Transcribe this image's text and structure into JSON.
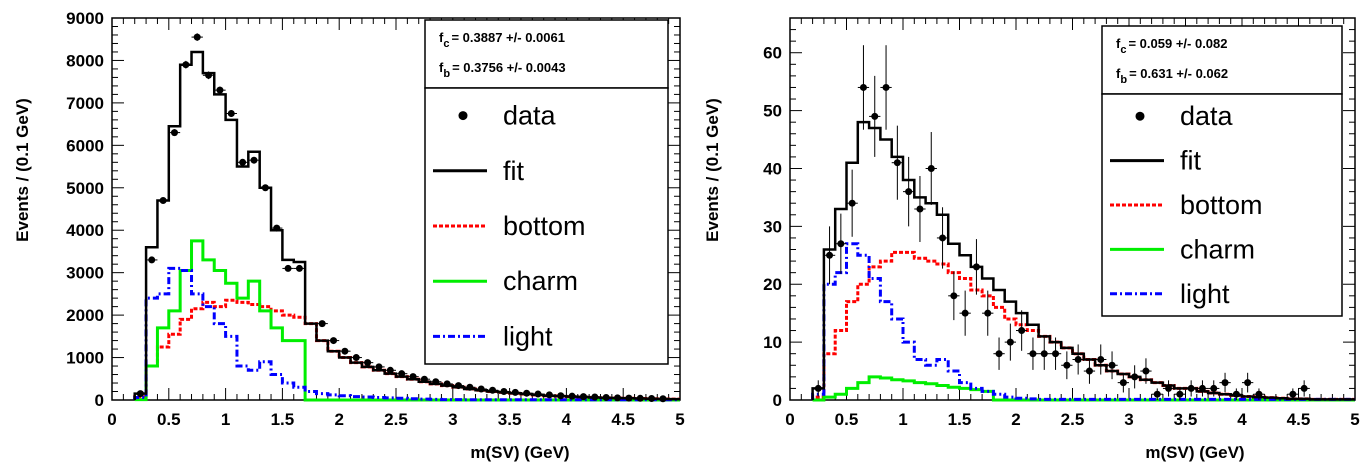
{
  "chart_data": [
    {
      "type": "histogram",
      "xlabel": "m(SV) (GeV)",
      "ylabel": "Events / (0.1 GeV)",
      "xlim": [
        0,
        5
      ],
      "ylim": [
        0,
        9000
      ],
      "xticks": [
        "0",
        "0.5",
        "1",
        "1.5",
        "2",
        "2.5",
        "3",
        "3.5",
        "4",
        "4.5",
        "5"
      ],
      "yticks": [
        "0",
        "1000",
        "2000",
        "3000",
        "4000",
        "5000",
        "6000",
        "7000",
        "8000",
        "9000"
      ],
      "bin_width": 0.1,
      "x_start": 0.2,
      "stats": [
        {
          "label": "f",
          "sub": "c",
          "value": "= 0.3887 +/- 0.0061"
        },
        {
          "label": "f",
          "sub": "b",
          "value": "= 0.3756 +/- 0.0043"
        }
      ],
      "legend": [
        {
          "label": "data",
          "style": "marker"
        },
        {
          "label": "fit",
          "style": "solid",
          "color": "#000000"
        },
        {
          "label": "bottom",
          "style": "dotted",
          "color": "#ff0000"
        },
        {
          "label": "charm",
          "style": "solid",
          "color": "#00ee00"
        },
        {
          "label": "light",
          "style": "dashdot",
          "color": "#0000ff"
        }
      ],
      "series": [
        {
          "name": "fit",
          "color": "#000000",
          "values": [
            150,
            3600,
            4700,
            6450,
            7900,
            8200,
            7700,
            7200,
            6600,
            5500,
            5850,
            5000,
            4000,
            3300,
            3250,
            1800,
            1400,
            1150,
            1000,
            880,
            780,
            700,
            620,
            550,
            490,
            430,
            380,
            340,
            300,
            260,
            230,
            200,
            180,
            160,
            140,
            120,
            100,
            90,
            80,
            70,
            60,
            50,
            45,
            40,
            35,
            30,
            25,
            20
          ]
        },
        {
          "name": "bottom",
          "color": "#ff0000",
          "values": [
            80,
            800,
            1250,
            1550,
            1900,
            2150,
            2300,
            2200,
            2350,
            2300,
            2250,
            2200,
            2100,
            2000,
            1950,
            1800,
            1400,
            1150,
            1000,
            880,
            780,
            700,
            620,
            550,
            490,
            430,
            380,
            340,
            300,
            260,
            230,
            200,
            180,
            160,
            140,
            120,
            100,
            90,
            80,
            70,
            60,
            50,
            45,
            40,
            35,
            30,
            25,
            20
          ]
        },
        {
          "name": "charm",
          "color": "#00ee00",
          "values": [
            10,
            800,
            1700,
            2100,
            3050,
            3750,
            3300,
            3050,
            2750,
            2400,
            2800,
            2100,
            1700,
            1400,
            1400,
            0,
            0,
            0,
            0,
            0,
            0,
            0,
            0,
            0,
            0,
            0,
            0,
            0,
            0,
            0,
            0,
            0,
            0,
            0,
            0,
            0,
            0,
            0,
            0,
            0,
            0,
            0,
            0,
            0,
            0,
            0,
            0,
            0
          ]
        },
        {
          "name": "light",
          "color": "#0000ff",
          "values": [
            60,
            2400,
            2500,
            3100,
            3050,
            2500,
            2200,
            1800,
            1500,
            800,
            700,
            900,
            600,
            400,
            300,
            200,
            150,
            120,
            100,
            80,
            70,
            60,
            50,
            40,
            30,
            20,
            15,
            10,
            10,
            5,
            5,
            5,
            5,
            5,
            5,
            5,
            5,
            5,
            5,
            5,
            5,
            5,
            5,
            5,
            5,
            5,
            5,
            5
          ]
        }
      ],
      "data_points": {
        "x": [
          0.25,
          0.35,
          0.45,
          0.55,
          0.65,
          0.75,
          0.85,
          0.95,
          1.05,
          1.15,
          1.25,
          1.35,
          1.45,
          1.55,
          1.65,
          1.85,
          1.95,
          2.05,
          2.15,
          2.25,
          2.35,
          2.45,
          2.55,
          2.65,
          2.75,
          2.85,
          2.95,
          3.05,
          3.15,
          3.25,
          3.35,
          3.45,
          3.55,
          3.65,
          3.75,
          3.85,
          3.95,
          4.05,
          4.15,
          4.25,
          4.35,
          4.45,
          4.55,
          4.65,
          4.75,
          4.85
        ],
        "y": [
          150,
          3300,
          4700,
          6300,
          7900,
          8550,
          7650,
          7300,
          6750,
          5600,
          5650,
          5000,
          4050,
          3100,
          3100,
          1800,
          1400,
          1150,
          1000,
          880,
          780,
          700,
          620,
          550,
          490,
          430,
          380,
          340,
          300,
          260,
          230,
          200,
          180,
          160,
          140,
          120,
          100,
          90,
          80,
          70,
          60,
          50,
          45,
          40,
          35,
          30
        ],
        "err": [
          20,
          60,
          70,
          80,
          90,
          90,
          90,
          85,
          80,
          75,
          75,
          70,
          65,
          55,
          55,
          45,
          40,
          35,
          32,
          30,
          28,
          26,
          25,
          24,
          22,
          21,
          20,
          18,
          17,
          16,
          15,
          14,
          13,
          13,
          12,
          11,
          10,
          10,
          9,
          9,
          8,
          7,
          7,
          6,
          6,
          5
        ]
      }
    },
    {
      "type": "histogram",
      "xlabel": "m(SV) (GeV)",
      "ylabel": "Events / (0.1 GeV)",
      "xlim": [
        0,
        5
      ],
      "ylim": [
        0,
        66
      ],
      "xticks": [
        "0",
        "0.5",
        "1",
        "1.5",
        "2",
        "2.5",
        "3",
        "3.5",
        "4",
        "4.5",
        "5"
      ],
      "yticks": [
        "0",
        "10",
        "20",
        "30",
        "40",
        "50",
        "60"
      ],
      "bin_width": 0.1,
      "x_start": 0.2,
      "stats": [
        {
          "label": "f",
          "sub": "c",
          "value": "= 0.059 +/- 0.082"
        },
        {
          "label": "f",
          "sub": "b",
          "value": "= 0.631 +/- 0.062"
        }
      ],
      "legend": [
        {
          "label": "data",
          "style": "marker"
        },
        {
          "label": "fit",
          "style": "solid",
          "color": "#000000"
        },
        {
          "label": "bottom",
          "style": "dotted",
          "color": "#ff0000"
        },
        {
          "label": "charm",
          "style": "solid",
          "color": "#00ee00"
        },
        {
          "label": "light",
          "style": "dashdot",
          "color": "#0000ff"
        }
      ],
      "series": [
        {
          "name": "fit",
          "color": "#000000",
          "values": [
            2,
            26,
            33,
            41,
            48,
            47,
            45,
            42,
            38,
            35,
            34,
            32,
            27,
            25,
            23,
            21,
            19,
            17,
            15,
            13,
            11,
            10,
            9,
            8,
            7,
            6,
            5,
            4.5,
            4,
            3.5,
            3,
            2.5,
            2,
            2,
            1.5,
            1.2,
            1,
            0.8,
            0.6,
            0.5,
            0.4,
            0.3,
            0.2,
            0.2,
            0.1,
            0.1,
            0.1,
            0.1
          ]
        },
        {
          "name": "bottom",
          "color": "#ff0000",
          "values": [
            0.5,
            8,
            12,
            17,
            20,
            23,
            24,
            25.5,
            25.5,
            24.5,
            24,
            23.5,
            22,
            21,
            19,
            18,
            16,
            14,
            13,
            12,
            11,
            10,
            9,
            8,
            7,
            6,
            5,
            4.5,
            4,
            3.5,
            3,
            2.5,
            2,
            2,
            1.5,
            1.2,
            1,
            0.8,
            0.6,
            0.5,
            0.4,
            0.3,
            0.2,
            0.2,
            0.1,
            0.1,
            0.1,
            0.1
          ]
        },
        {
          "name": "charm",
          "color": "#00ee00",
          "values": [
            0,
            0.5,
            1,
            2,
            3,
            4,
            3.8,
            3.5,
            3.3,
            3,
            2.8,
            2.5,
            2.2,
            2,
            1.8,
            1.5,
            0,
            0,
            0,
            0,
            0,
            0,
            0,
            0,
            0,
            0,
            0,
            0,
            0,
            0,
            0,
            0,
            0,
            0,
            0,
            0,
            0,
            0,
            0,
            0,
            0,
            0,
            0,
            0,
            0,
            0,
            0,
            0
          ]
        },
        {
          "name": "light",
          "color": "#0000ff",
          "values": [
            1,
            20,
            22,
            27,
            25,
            21,
            17,
            14,
            10,
            7,
            6,
            7,
            5,
            3,
            2,
            1.5,
            1,
            0.5,
            0.3,
            0.2,
            0.1,
            0.1,
            0.1,
            0.1,
            0.1,
            0.1,
            0.1,
            0.1,
            0.1,
            0.1,
            0.1,
            0.1,
            0.1,
            0.1,
            0.1,
            0.1,
            0.1,
            0.1,
            0.1,
            0.1,
            0.1,
            0.1,
            0.1,
            0.1,
            0.1,
            0.1,
            0.1,
            0.1
          ]
        }
      ],
      "data_points": {
        "x": [
          0.25,
          0.35,
          0.45,
          0.55,
          0.65,
          0.75,
          0.85,
          0.95,
          1.05,
          1.15,
          1.25,
          1.35,
          1.45,
          1.55,
          1.65,
          1.75,
          1.85,
          1.95,
          2.05,
          2.15,
          2.25,
          2.35,
          2.45,
          2.55,
          2.65,
          2.75,
          2.85,
          2.95,
          3.05,
          3.15,
          3.25,
          3.35,
          3.45,
          3.55,
          3.65,
          3.75,
          3.85,
          3.95,
          4.05,
          4.15,
          4.45,
          4.55
        ],
        "y": [
          2,
          25,
          27,
          34,
          54,
          49,
          54,
          41,
          36,
          33,
          40,
          28,
          18,
          15,
          23,
          15,
          8,
          10,
          12,
          8,
          8,
          8,
          6,
          7,
          5,
          7,
          6,
          3,
          4,
          5,
          1,
          2,
          1,
          2,
          2,
          2,
          3,
          1,
          3,
          1,
          1,
          2
        ],
        "err": [
          1.4,
          5,
          5.2,
          5.8,
          7.3,
          7,
          7.3,
          6.4,
          6,
          5.7,
          6.3,
          5.3,
          4.2,
          3.9,
          4.8,
          3.9,
          2.8,
          3.2,
          3.5,
          2.8,
          2.8,
          2.8,
          2.4,
          2.6,
          2.2,
          2.6,
          2.4,
          1.7,
          2,
          2.2,
          1,
          1.4,
          1,
          1.4,
          1.4,
          1.4,
          1.7,
          1,
          1.7,
          1,
          1,
          1.4
        ]
      }
    }
  ]
}
